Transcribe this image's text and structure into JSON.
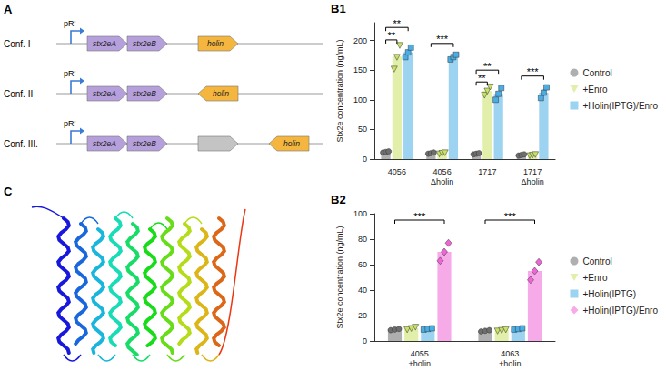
{
  "chart_data": [
    {
      "type": "bar",
      "panel": "B1",
      "y_label": "Stx2e concentration (ng/mL)",
      "categories": [
        "4056",
        "4056 Δholin",
        "1717",
        "1717 Δholin"
      ],
      "series": [
        {
          "name": "Control",
          "color": "#6e6e6e",
          "marker": "circle",
          "values": [
            12,
            10,
            9,
            7
          ],
          "points": [
            [
              11,
              12,
              13
            ],
            [
              9,
              10,
              11
            ],
            [
              8,
              9,
              10
            ],
            [
              6,
              7,
              8
            ]
          ]
        },
        {
          "name": "+Enro",
          "color": "#c9e265",
          "marker": "triangle",
          "values": [
            173,
            10,
            115,
            7
          ],
          "points": [
            [
              152,
              172,
              192
            ],
            [
              9,
              10,
              11
            ],
            [
              108,
              115,
              122
            ],
            [
              6,
              7,
              8
            ]
          ]
        },
        {
          "name": "+Holin(IPTG)/Enro",
          "color": "#4aaee6",
          "marker": "square",
          "values": [
            180,
            172,
            110,
            112
          ],
          "points": [
            [
              172,
              180,
              188
            ],
            [
              168,
              172,
              176
            ],
            [
              100,
              110,
              120
            ],
            [
              103,
              112,
              121
            ]
          ]
        }
      ],
      "ylim": [
        0,
        230
      ],
      "yticks": [
        0,
        50,
        100,
        150,
        200
      ],
      "grid": false,
      "legend": "right",
      "annotations": [
        {
          "category": "4056",
          "from": "Control",
          "to": "+Enro",
          "y": 201,
          "label": "**"
        },
        {
          "category": "4056",
          "from": "Control",
          "to": "+Holin(IPTG)/Enro",
          "y": 222,
          "label": "**"
        },
        {
          "category": "4056 Δholin",
          "from": "Control",
          "to": "+Holin(IPTG)/Enro",
          "y": 195,
          "label": "***"
        },
        {
          "category": "1717",
          "from": "Control",
          "to": "+Enro",
          "y": 130,
          "label": "**"
        },
        {
          "category": "1717",
          "from": "Control",
          "to": "+Holin(IPTG)/Enro",
          "y": 150,
          "label": "**"
        },
        {
          "category": "1717 Δholin",
          "from": "Control",
          "to": "+Holin(IPTG)/Enro",
          "y": 140,
          "label": "***"
        }
      ]
    },
    {
      "type": "bar",
      "panel": "B2",
      "y_label": "Stx2e concentration (ng/mL)",
      "categories": [
        "4055 +holin",
        "4063 +holin"
      ],
      "series": [
        {
          "name": "Control",
          "color": "#6e6e6e",
          "marker": "circle",
          "values": [
            9,
            8
          ],
          "points": [
            [
              8.5,
              9,
              9.5
            ],
            [
              7.5,
              8,
              8.5
            ]
          ]
        },
        {
          "name": "+Enro",
          "color": "#c9e265",
          "marker": "triangle",
          "values": [
            10,
            8.5
          ],
          "points": [
            [
              9,
              10,
              11
            ],
            [
              8,
              8.5,
              9
            ]
          ]
        },
        {
          "name": "+Holin(IPTG)",
          "color": "#4aaee6",
          "marker": "square",
          "values": [
            9.5,
            9.5
          ],
          "points": [
            [
              9,
              9.5,
              10
            ],
            [
              9,
              9.5,
              10
            ]
          ]
        },
        {
          "name": "+Holin(IPTG)/Enro",
          "color": "#ee66d6",
          "marker": "diamond",
          "values": [
            70,
            55
          ],
          "points": [
            [
              63,
              70,
              77
            ],
            [
              48,
              55,
              62
            ]
          ]
        }
      ],
      "ylim": [
        0,
        100
      ],
      "yticks": [
        0,
        20,
        40,
        60,
        80,
        100
      ],
      "grid": false,
      "legend": "right",
      "annotations": [
        {
          "category": "4055 +holin",
          "from": "Control",
          "to": "+Holin(IPTG)/Enro",
          "y": 95,
          "label": "***"
        },
        {
          "category": "4063 +holin",
          "from": "Control",
          "to": "+Holin(IPTG)/Enro",
          "y": 95,
          "label": "***"
        }
      ]
    }
  ],
  "diagram": {
    "panel": "A",
    "constructs": [
      {
        "label": "Conf. I",
        "promoter": "pR'",
        "genes": [
          {
            "name": "stx2eA",
            "direction": "forward",
            "color": "#b6a0dc"
          },
          {
            "name": "stx2eB",
            "direction": "forward",
            "color": "#b6a0dc"
          },
          {
            "name": "holin",
            "direction": "forward",
            "color": "#f4b63f"
          }
        ]
      },
      {
        "label": "Conf. II",
        "promoter": "pR'",
        "genes": [
          {
            "name": "stx2eA",
            "direction": "forward",
            "color": "#b6a0dc"
          },
          {
            "name": "stx2eB",
            "direction": "forward",
            "color": "#b6a0dc"
          },
          {
            "name": "holin",
            "direction": "reverse",
            "color": "#f4b63f"
          }
        ]
      },
      {
        "label": "Conf. III.",
        "promoter": "pR'",
        "genes": [
          {
            "name": "stx2eA",
            "direction": "forward",
            "color": "#b6a0dc"
          },
          {
            "name": "stx2eB",
            "direction": "forward",
            "color": "#b6a0dc"
          },
          {
            "name": null,
            "direction": "forward",
            "color": "#c4c4c4"
          },
          {
            "name": "holin",
            "direction": "reverse",
            "color": "#f4b63f"
          }
        ]
      }
    ]
  },
  "structure": {
    "panel": "C"
  }
}
